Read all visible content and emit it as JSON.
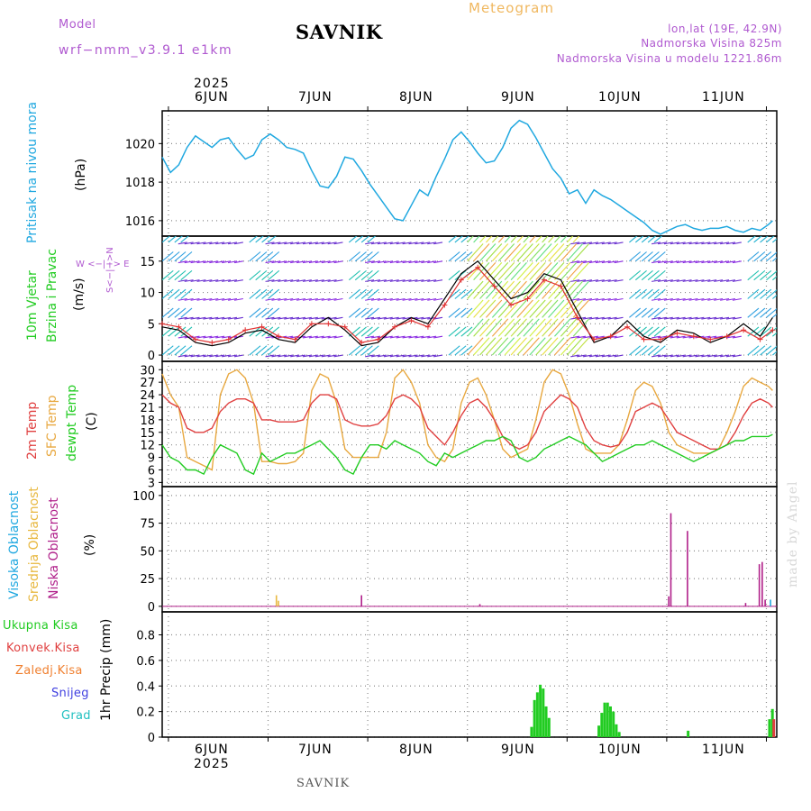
{
  "header": {
    "model_label": "Model",
    "model_name": "wrf−nmm_v3.9.1  e1km",
    "station": "SAVNIK",
    "product": "Meteogram",
    "lonlat": "lon,lat (19E, 42.9N)",
    "elevation": "Nadmorska Visina 825m",
    "model_elevation": "Nadmorska Visina u modelu 1221.86m"
  },
  "time_axis": {
    "year": "2025",
    "days": [
      "6JUN",
      "7JUN",
      "8JUN",
      "9JUN",
      "10JUN",
      "11JUN"
    ]
  },
  "colors": {
    "pressure": "#20a8e0",
    "wind_speed": "#000000",
    "gust": "#e03030",
    "t2m": "#e04040",
    "sfc": "#e8a840",
    "dewpoint": "#22cc22",
    "high_cloud": "#20a8e0",
    "mid_cloud": "#e8b840",
    "low_cloud": "#b0208a",
    "total_precip": "#22cc22",
    "conv_precip": "#e04040",
    "frozen": "#f08030",
    "snow": "#4040e0",
    "hail": "#20c0c0"
  },
  "labels": {
    "pressure_title": "Pritisak na nivou mora",
    "pressure_unit": "(hPa)",
    "wind_title1": "10m Vjetar",
    "wind_title2": "Brzina i Pravac",
    "wind_unit": "(m/s)",
    "compass": "W  <−|−>  E",
    "compass_ns": "S<−|−>N",
    "t2m_title": "2m Temp",
    "sfc_title": "SFC Temp",
    "dew_title": "dewpt Temp",
    "temp_unit": "(C)",
    "high_cloud_title": "Visoka Oblacnost",
    "mid_cloud_title": "Srednja Oblacnost",
    "low_cloud_title": "Niska Oblacnost",
    "cloud_unit": "(%)",
    "precip_title": "1hr Precip (mm)",
    "legend_total": "Ukupna  Kisa",
    "legend_conv": "Konvek.Kisa",
    "legend_frozen": "Zaledj.Kisa",
    "legend_snow": "Snijeg",
    "legend_hail": "Grad",
    "footer": "SAVNIK",
    "made_by": "made by Angel"
  },
  "chart_data": [
    {
      "type": "line",
      "name": "pressure",
      "ylabel": "(hPa)",
      "ylim": [
        1015.2,
        1021.7
      ],
      "yticks": [
        1016,
        1018,
        1020
      ],
      "x_hours": [
        0,
        2,
        4,
        6,
        8,
        10,
        12,
        14,
        16,
        18,
        20,
        22,
        24,
        26,
        28,
        30,
        32,
        34,
        36,
        38,
        40,
        42,
        44,
        46,
        48,
        50,
        52,
        54,
        56,
        58,
        60,
        62,
        64,
        66,
        68,
        70,
        72,
        74,
        76,
        78,
        80,
        82,
        84,
        86,
        88,
        90,
        92,
        94,
        96,
        98,
        100,
        102,
        104,
        106,
        108,
        110,
        112,
        114,
        116,
        118,
        120,
        122,
        124,
        126,
        128,
        130,
        132,
        134,
        136,
        138,
        140,
        142,
        144,
        146,
        147
      ],
      "values": [
        1019.3,
        1018.5,
        1018.9,
        1019.8,
        1020.4,
        1020.1,
        1019.8,
        1020.2,
        1020.3,
        1019.7,
        1019.2,
        1019.4,
        1020.2,
        1020.5,
        1020.2,
        1019.8,
        1019.7,
        1019.5,
        1018.6,
        1017.8,
        1017.7,
        1018.3,
        1019.3,
        1019.2,
        1018.6,
        1017.9,
        1017.3,
        1016.7,
        1016.1,
        1016.0,
        1016.8,
        1017.6,
        1017.3,
        1018.3,
        1019.2,
        1020.2,
        1020.6,
        1020.1,
        1019.5,
        1019.0,
        1019.1,
        1019.8,
        1020.8,
        1021.2,
        1021.0,
        1020.3,
        1019.5,
        1018.7,
        1018.2,
        1017.4,
        1017.6,
        1016.9,
        1017.6,
        1017.3,
        1017.1,
        1016.8,
        1016.5,
        1016.2,
        1015.9,
        1015.5,
        1015.3,
        1015.5,
        1015.7,
        1015.8,
        1015.6,
        1015.5,
        1015.6,
        1015.6,
        1015.7,
        1015.5,
        1015.4,
        1015.6,
        1015.5,
        1015.8,
        1016.0
      ]
    },
    {
      "type": "line",
      "name": "wind",
      "ylabel": "(m/s)",
      "ylim": [
        -1,
        19
      ],
      "yticks": [
        0,
        5,
        10,
        15
      ],
      "x_hours": [
        0,
        4,
        8,
        12,
        16,
        20,
        24,
        28,
        32,
        36,
        40,
        44,
        48,
        52,
        56,
        60,
        64,
        68,
        72,
        76,
        80,
        84,
        88,
        92,
        96,
        100,
        104,
        108,
        112,
        116,
        120,
        124,
        128,
        132,
        136,
        140,
        144,
        147
      ],
      "speed": [
        4.5,
        4.0,
        2.0,
        1.5,
        2.0,
        3.5,
        4.0,
        2.5,
        2.0,
        4.5,
        6.0,
        4.0,
        1.5,
        2.0,
        4.5,
        6.0,
        5.0,
        9.0,
        13.0,
        15.0,
        12.0,
        9.0,
        10.0,
        13.0,
        12.0,
        7.0,
        2.0,
        3.0,
        5.5,
        3.0,
        2.0,
        4.0,
        3.5,
        2.0,
        3.0,
        5.0,
        3.0,
        6.0
      ],
      "gust": [
        5.0,
        4.5,
        2.5,
        2.0,
        2.5,
        4.0,
        4.5,
        3.0,
        2.5,
        5.0,
        5.0,
        4.5,
        2.0,
        2.5,
        4.5,
        5.5,
        4.5,
        8.0,
        12.0,
        14.0,
        11.0,
        8.0,
        9.0,
        12.0,
        11.0,
        6.0,
        2.5,
        3.0,
        4.5,
        2.5,
        2.5,
        3.5,
        3.0,
        2.5,
        3.0,
        4.0,
        2.5,
        4.0
      ]
    },
    {
      "type": "line",
      "name": "temperature",
      "ylabel": "(C)",
      "ylim": [
        2,
        32
      ],
      "yticks": [
        3,
        6,
        9,
        12,
        15,
        18,
        21,
        24,
        27,
        30
      ],
      "x_hours": [
        0,
        2,
        4,
        6,
        8,
        10,
        12,
        14,
        16,
        18,
        20,
        22,
        24,
        26,
        28,
        30,
        32,
        34,
        36,
        38,
        40,
        42,
        44,
        46,
        48,
        50,
        52,
        54,
        56,
        58,
        60,
        62,
        64,
        66,
        68,
        70,
        72,
        74,
        76,
        78,
        80,
        82,
        84,
        86,
        88,
        90,
        92,
        94,
        96,
        98,
        100,
        102,
        104,
        106,
        108,
        110,
        112,
        114,
        116,
        118,
        120,
        122,
        124,
        126,
        128,
        130,
        132,
        134,
        136,
        138,
        140,
        142,
        144,
        146,
        147
      ],
      "t2m": [
        24,
        22,
        21,
        16,
        15,
        15,
        16,
        20,
        22,
        23,
        23,
        22,
        18,
        18,
        17.5,
        17.5,
        17.5,
        18,
        22,
        24,
        24,
        23,
        18,
        17,
        16.5,
        16.5,
        17,
        19,
        23,
        24,
        23,
        21,
        16,
        14,
        12,
        15,
        19,
        22,
        23,
        21,
        18,
        14,
        12,
        11,
        12,
        15,
        20,
        22,
        24,
        23,
        21,
        16,
        13,
        12,
        11.5,
        12,
        15,
        20,
        21,
        22,
        21,
        18,
        15,
        14,
        13,
        12,
        11,
        11,
        12,
        15,
        19,
        22,
        23,
        22,
        21
      ],
      "sfc": [
        29,
        24,
        21,
        9,
        8,
        7,
        6,
        24,
        29,
        30,
        28,
        22,
        8,
        8,
        7.5,
        7.5,
        8,
        10,
        25,
        29,
        28,
        22,
        11,
        9,
        9,
        9,
        9,
        15,
        28,
        30,
        27,
        22,
        12,
        9,
        8,
        11,
        22,
        27,
        28,
        24,
        18,
        11,
        9,
        10,
        11,
        18,
        27,
        30,
        29,
        24,
        17,
        11,
        10,
        10,
        10,
        12,
        18,
        25,
        27,
        26,
        22,
        15,
        12,
        11,
        10,
        10,
        10,
        11,
        15,
        20,
        26,
        28,
        27,
        26,
        25
      ],
      "dew": [
        12,
        9,
        8,
        6,
        6,
        5,
        9,
        12,
        11,
        10,
        6,
        5,
        10,
        8,
        9,
        10,
        10,
        11,
        12,
        13,
        11,
        9,
        6,
        5,
        9,
        12,
        12,
        11,
        13,
        12,
        11,
        10,
        8,
        7,
        10,
        9,
        10,
        11,
        12,
        13,
        13,
        14,
        13,
        9,
        8,
        9,
        11,
        12,
        13,
        14,
        13,
        12,
        10,
        8,
        9,
        10,
        11,
        12,
        12,
        13,
        12,
        11,
        10,
        9,
        8,
        9,
        10,
        11,
        12,
        13,
        13,
        14,
        14,
        14,
        14.5
      ]
    },
    {
      "type": "bar",
      "name": "cloud",
      "ylabel": "(%)",
      "ylim": [
        -5,
        108
      ],
      "yticks": [
        0,
        25,
        50,
        75,
        100
      ],
      "series": [
        {
          "name": "Visoka Oblacnost",
          "x_hours": [
            146.5
          ],
          "values": [
            6
          ]
        },
        {
          "name": "Srednja Oblacnost",
          "x_hours": [
            27.5,
            28
          ],
          "values": [
            10,
            5
          ]
        },
        {
          "name": "Niska Oblacnost",
          "x_hours": [
            48,
            76.5,
            122,
            122.5,
            126.5,
            140.5,
            143.8,
            144.5,
            145.2
          ],
          "values": [
            10,
            2,
            9,
            84,
            68,
            3,
            38,
            40,
            6
          ]
        }
      ]
    },
    {
      "type": "bar",
      "name": "precip",
      "ylabel": "1hr Precip (mm)",
      "ylim": [
        0,
        0.98
      ],
      "yticks": [
        0,
        0.2,
        0.4,
        0.6,
        0.8
      ],
      "series": [
        {
          "name": "Ukupna Kisa",
          "x_hours": [
            89,
            89.7,
            90.4,
            91.1,
            91.8,
            92.5,
            93.2,
            105.2,
            105.9,
            106.6,
            107.3,
            108.0,
            108.7,
            109.4,
            110.1,
            126.7,
            146.3,
            147.0
          ],
          "values": [
            0.08,
            0.29,
            0.35,
            0.41,
            0.38,
            0.24,
            0.15,
            0.09,
            0.19,
            0.27,
            0.27,
            0.24,
            0.2,
            0.1,
            0.04,
            0.05,
            0.14,
            0.22
          ]
        },
        {
          "name": "Konvek.Kisa",
          "x_hours": [
            147.0
          ],
          "values": [
            0.14
          ]
        }
      ]
    }
  ]
}
